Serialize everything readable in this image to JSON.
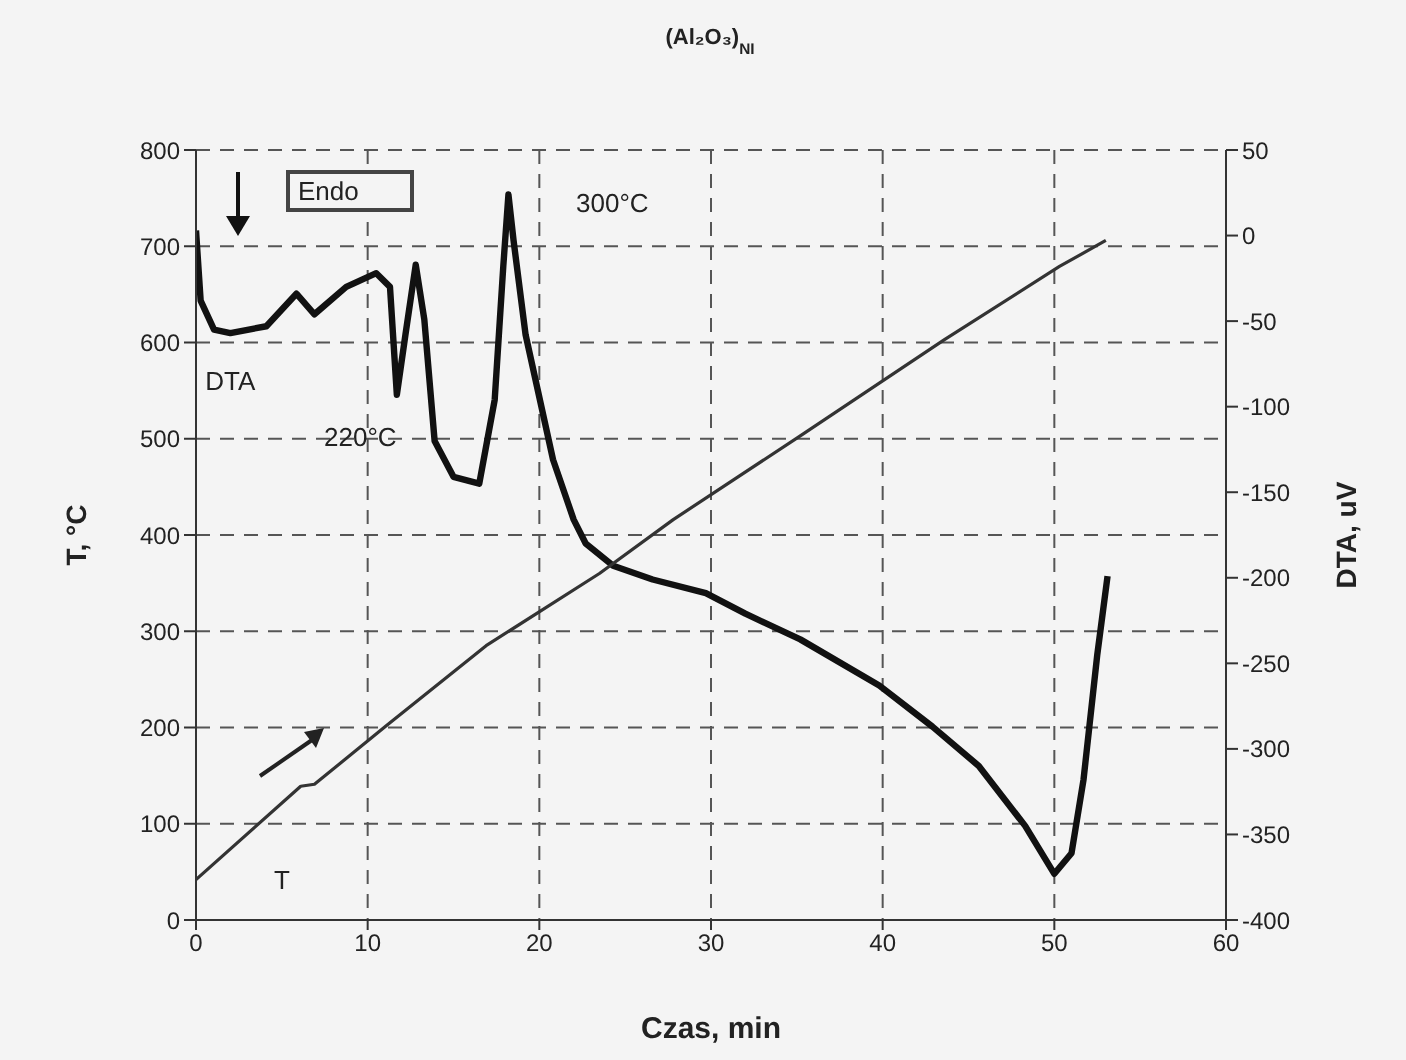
{
  "chart_data": {
    "type": "line",
    "title": "(Al₂O₃)$_{NI}$",
    "xlabel": "Czas, min",
    "ylabel": "T, °C",
    "y2label": "DTA, uV",
    "xlim": [
      0,
      60
    ],
    "xticks": [
      0,
      10,
      20,
      30,
      40,
      50,
      60
    ],
    "ylim": [
      0,
      800
    ],
    "yticks": [
      0,
      100,
      200,
      300,
      400,
      500,
      600,
      700,
      800
    ],
    "y2lim": [
      -400,
      50
    ],
    "y2ticks": [
      -400,
      -350,
      -300,
      -250,
      -200,
      -150,
      -100,
      -50,
      0,
      50
    ],
    "grid": true,
    "legend": false,
    "marker": "none",
    "line_style": "solid",
    "series": [
      {
        "name": "DTA",
        "axis": "y2",
        "color": "#111111",
        "x": [
          0,
          0.27,
          1.05,
          2.0,
          4.1,
          5.85,
          6.9,
          8.75,
          10.5,
          11.3,
          11.7,
          12.2,
          12.8,
          13.3,
          13.9,
          15.0,
          16.5,
          17.4,
          17.9,
          18.2,
          18.5,
          19.2,
          20.8,
          22.0,
          22.7,
          24.3,
          26.6,
          29.7,
          32.0,
          35.2,
          39.8,
          42.9,
          45.6,
          48.3,
          50.0,
          51.0,
          51.7,
          52.5,
          53.1
        ],
        "values": [
          3,
          -38,
          -55,
          -57,
          -53,
          -34,
          -46,
          -30,
          -22,
          -30,
          -93,
          -58,
          -17,
          -49,
          -120,
          -141,
          -145,
          -96,
          -18,
          24,
          -3,
          -58,
          -131,
          -166,
          -180,
          -193,
          -201,
          -209,
          -221,
          -236,
          -263,
          -287,
          -310,
          -345,
          -373,
          -361,
          -318,
          -245,
          -199
        ]
      },
      {
        "name": "T",
        "color": "#333333",
        "x": [
          0,
          6.1,
          6.9,
          11.1,
          16.9,
          23.5,
          27.8,
          35.2,
          43.6,
          50.3,
          53.0
        ],
        "values": [
          42,
          139,
          141,
          202,
          285,
          360,
          416,
          503,
          603,
          679,
          706
        ]
      }
    ],
    "annotations": [
      "Endo",
      "220°C",
      "300°C"
    ]
  }
}
